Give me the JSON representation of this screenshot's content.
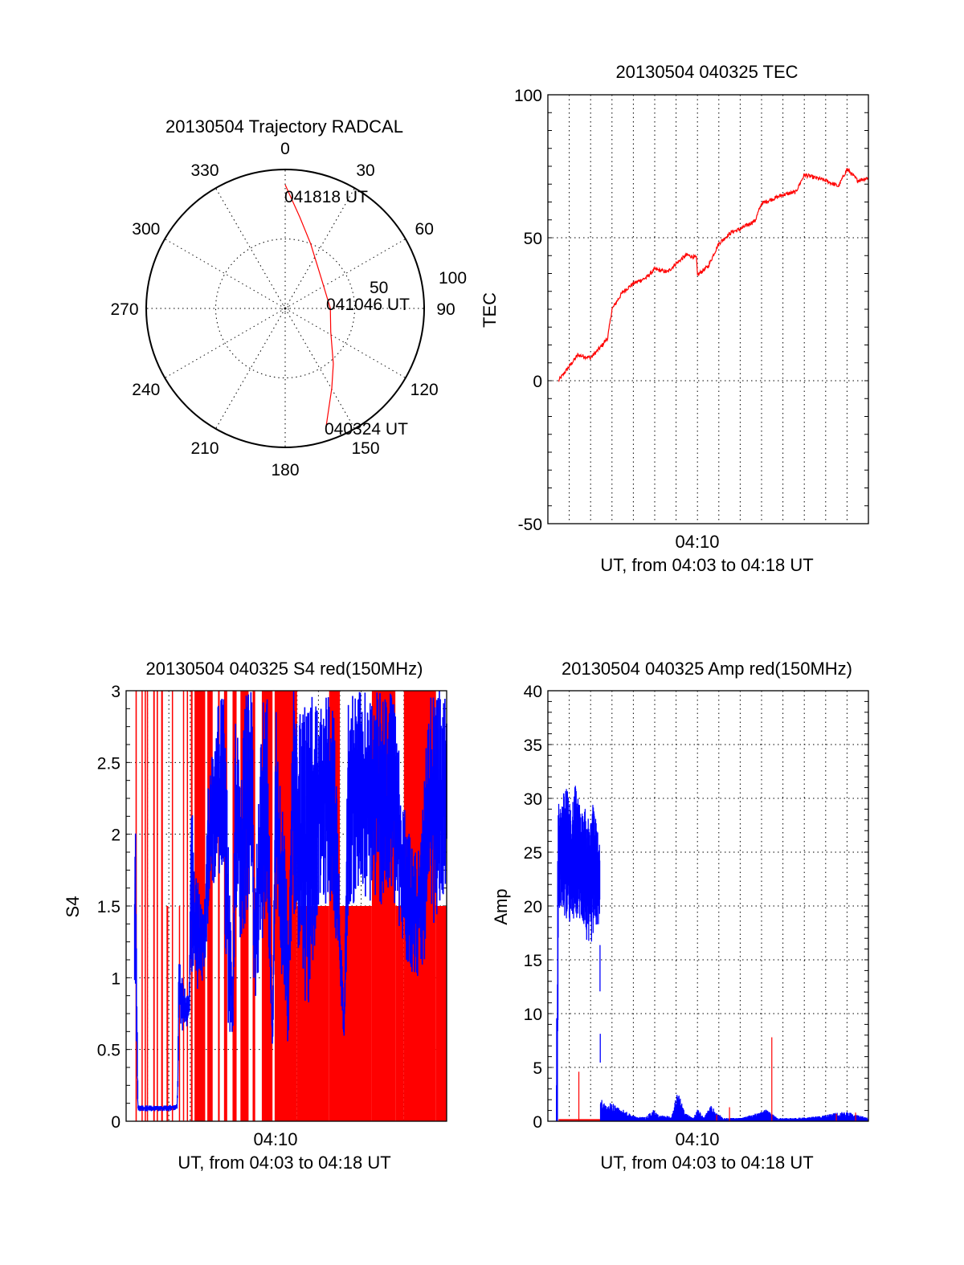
{
  "chart_data": [
    {
      "type": "polar",
      "title": "20130504 Trajectory RADCAL",
      "azimuth_labels": [
        "0",
        "30",
        "60",
        "90",
        "120",
        "150",
        "180",
        "210",
        "240",
        "270",
        "300",
        "330"
      ],
      "radial_labels": [
        "50",
        "100"
      ],
      "rlim": [
        0,
        100
      ],
      "trajectory_color": "#ff0000",
      "trajectory": [
        [
          160.7,
          89.4
        ],
        [
          149.6,
          66.3
        ],
        [
          139,
          52.8
        ],
        [
          117.3,
          36.9
        ],
        [
          90,
          32.5
        ],
        [
          50.3,
          33.8
        ],
        [
          21.4,
          50.1
        ],
        [
          9,
          66.7
        ],
        [
          0,
          89
        ]
      ],
      "annotations": {
        "start": "040324 UT",
        "mid": "041046 UT",
        "end": "041818 UT"
      }
    },
    {
      "type": "line",
      "title": "20130504 040325 TEC",
      "ylabel": "TEC",
      "xlabel": "UT, from 04:03 to 04:18 UT",
      "xtick_label": "04:10",
      "xlim_minutes_after_0403": [
        0,
        15
      ],
      "ylim": [
        -50,
        100
      ],
      "yticks": [
        "100",
        "50",
        "0",
        "-50"
      ],
      "color": "#ff0000",
      "x": [
        0.5,
        1,
        1.4,
        2,
        2.5,
        2.8,
        3,
        3.5,
        4,
        4.6,
        5,
        5.6,
        6,
        6.5,
        6.95,
        7,
        7.5,
        8,
        8.6,
        9,
        9.7,
        10,
        11,
        11.6,
        12,
        13,
        13.6,
        14,
        14.5,
        15
      ],
      "y": [
        0,
        5,
        9,
        8,
        12,
        15,
        25,
        31,
        34,
        36,
        39,
        38,
        41,
        44,
        43,
        37,
        40,
        48,
        52,
        53,
        56,
        62,
        65,
        66,
        72,
        70,
        68,
        74,
        70,
        71
      ]
    },
    {
      "type": "line",
      "title": "20130504 040325 S4 red(150MHz)",
      "ylabel": "S4",
      "xlabel": "UT, from 04:03 to 04:18 UT",
      "xtick_label": "04:10",
      "xlim_minutes_after_0403": [
        0,
        15
      ],
      "ylim": [
        0,
        3
      ],
      "yticks": [
        "3",
        "2.5",
        "2",
        "1.5",
        "1",
        "0.5",
        "0"
      ],
      "colors": {
        "red": "#ff0000",
        "blue": "#0000ff"
      },
      "red_segments_t0_t1_top": [
        [
          0.44,
          0.5,
          3
        ],
        [
          0.72,
          0.77,
          3
        ],
        [
          0.87,
          0.91,
          3
        ],
        [
          0.97,
          1.0,
          3
        ],
        [
          1.27,
          1.34,
          3
        ],
        [
          1.43,
          1.49,
          3
        ],
        [
          1.64,
          1.72,
          3
        ],
        [
          1.89,
          1.97,
          1.5
        ],
        [
          2.14,
          2.19,
          3
        ],
        [
          2.47,
          2.51,
          1.5
        ],
        [
          2.66,
          2.7,
          3
        ],
        [
          2.84,
          2.88,
          3
        ],
        [
          3.03,
          3.11,
          3
        ],
        [
          3.2,
          3.7,
          3
        ],
        [
          3.8,
          4.05,
          3
        ],
        [
          4.3,
          4.38,
          3
        ],
        [
          4.58,
          4.73,
          3
        ],
        [
          4.98,
          5.17,
          3
        ],
        [
          5.35,
          5.73,
          3
        ],
        [
          5.92,
          6.04,
          3
        ],
        [
          6.35,
          6.85,
          3
        ],
        [
          6.95,
          8.0,
          3
        ],
        [
          8.0,
          9.5,
          1.5
        ],
        [
          9.5,
          10.0,
          3
        ],
        [
          10.0,
          11.5,
          1.5
        ],
        [
          11.5,
          12.6,
          3
        ],
        [
          12.6,
          13.0,
          1.5
        ],
        [
          13.0,
          14.5,
          3
        ],
        [
          14.5,
          15,
          1.5
        ]
      ],
      "blue_envelope_t_lo_hi": [
        [
          0.4,
          0.6,
          1.9
        ],
        [
          0.45,
          0.8,
          2.3
        ],
        [
          0.5,
          0.25,
          1.0
        ],
        [
          0.55,
          0.07,
          0.11
        ],
        [
          1.0,
          0.07,
          0.11
        ],
        [
          1.5,
          0.07,
          0.11
        ],
        [
          2.0,
          0.07,
          0.11
        ],
        [
          2.38,
          0.08,
          0.13
        ],
        [
          2.42,
          0.2,
          0.3
        ],
        [
          2.47,
          0.7,
          1.15
        ],
        [
          2.7,
          0.6,
          0.95
        ],
        [
          2.95,
          0.7,
          0.85
        ],
        [
          3.05,
          1.0,
          2.5
        ],
        [
          3.2,
          0.95,
          1.8
        ],
        [
          3.45,
          0.9,
          1.6
        ],
        [
          3.65,
          1.0,
          1.4
        ],
        [
          3.85,
          1.4,
          2.5
        ],
        [
          4.0,
          1.6,
          2.6
        ],
        [
          4.3,
          1.7,
          3
        ],
        [
          4.55,
          1.6,
          3
        ],
        [
          4.8,
          0.6,
          2.0
        ],
        [
          5.0,
          0.6,
          0.8
        ],
        [
          5.1,
          1.5,
          3
        ],
        [
          5.4,
          1.2,
          2.5
        ],
        [
          5.6,
          1.4,
          3
        ],
        [
          5.9,
          1.7,
          3
        ],
        [
          6.0,
          0.8,
          1.5
        ],
        [
          6.2,
          1.0,
          2.4
        ],
        [
          6.4,
          1.2,
          3
        ],
        [
          6.6,
          1.5,
          3
        ],
        [
          6.85,
          0.5,
          0.6
        ],
        [
          7.0,
          1.5,
          3
        ],
        [
          7.6,
          0.45,
          1.5
        ],
        [
          7.8,
          1.5,
          3
        ],
        [
          8.5,
          0.7,
          3
        ],
        [
          9.0,
          1.5,
          3
        ],
        [
          9.7,
          1.5,
          3
        ],
        [
          10.2,
          0.55,
          0.7
        ],
        [
          10.4,
          1.5,
          3
        ],
        [
          11.5,
          1.5,
          3
        ],
        [
          12.5,
          1.5,
          3
        ],
        [
          13.0,
          1.1,
          2.2
        ],
        [
          13.5,
          1.0,
          1.9
        ],
        [
          13.8,
          1.0,
          2.0
        ],
        [
          14.2,
          1.3,
          3
        ],
        [
          14.7,
          1.5,
          3
        ],
        [
          15,
          1.5,
          3
        ]
      ]
    },
    {
      "type": "line",
      "title": "20130504 040325 Amp red(150MHz)",
      "ylabel": "Amp",
      "xlabel": "UT, from 04:03 to 04:18 UT",
      "xtick_label": "04:10",
      "xlim_minutes_after_0403": [
        0,
        15
      ],
      "ylim": [
        0,
        40
      ],
      "yticks": [
        "40",
        "35",
        "30",
        "25",
        "20",
        "15",
        "10",
        "5",
        "0"
      ],
      "colors": {
        "red": "#ff0000",
        "blue": "#0000ff"
      },
      "blue_envelope_t_lo_hi": [
        [
          0.4,
          0,
          5.3
        ],
        [
          0.45,
          0,
          26
        ],
        [
          0.5,
          20,
          30
        ],
        [
          0.7,
          19,
          30.5
        ],
        [
          0.9,
          18.5,
          31
        ],
        [
          1.1,
          18,
          29
        ],
        [
          1.3,
          19,
          31.5
        ],
        [
          1.5,
          18.5,
          29.5
        ],
        [
          1.7,
          18,
          30
        ],
        [
          1.9,
          15.5,
          28
        ],
        [
          2.1,
          17,
          30
        ],
        [
          2.3,
          18,
          27.5
        ],
        [
          2.43,
          18,
          26
        ],
        [
          2.46,
          0,
          2.3
        ],
        [
          2.7,
          0,
          1.5
        ],
        [
          3.0,
          0,
          1.8
        ],
        [
          3.3,
          0,
          1.3
        ],
        [
          3.6,
          0,
          1.0
        ],
        [
          3.9,
          0,
          0.6
        ],
        [
          4.2,
          0,
          0.4
        ],
        [
          4.6,
          0,
          0.4
        ],
        [
          4.9,
          0,
          1.1
        ],
        [
          5.2,
          0,
          0.6
        ],
        [
          5.6,
          0,
          0.5
        ],
        [
          5.8,
          0,
          0.5
        ],
        [
          6.0,
          0,
          2.5
        ],
        [
          6.15,
          0,
          2.4
        ],
        [
          6.4,
          0,
          0.8
        ],
        [
          6.8,
          0,
          0.3
        ],
        [
          7.0,
          0,
          1.3
        ],
        [
          7.3,
          0,
          0.3
        ],
        [
          7.6,
          0,
          1.5
        ],
        [
          7.8,
          0,
          1.1
        ],
        [
          8.2,
          0,
          0.3
        ],
        [
          9.0,
          0,
          0.3
        ],
        [
          10.0,
          0,
          0.9
        ],
        [
          10.2,
          0,
          1.2
        ],
        [
          10.4,
          0,
          0.8
        ],
        [
          10.8,
          0,
          0.3
        ],
        [
          11.5,
          0,
          0.3
        ],
        [
          12.3,
          0,
          0.4
        ],
        [
          13.0,
          0,
          0.6
        ],
        [
          13.5,
          0,
          0.8
        ],
        [
          14.0,
          0,
          0.9
        ],
        [
          14.5,
          0,
          0.6
        ],
        [
          15,
          0,
          0.3
        ]
      ],
      "red_baseline_t0_t1_value": [
        0.5,
        2.45,
        0.12
      ],
      "red_spikes_t_value": [
        [
          1.45,
          4.6
        ],
        [
          7.9,
          0.6
        ],
        [
          8.5,
          1.3
        ],
        [
          10.48,
          7.8
        ],
        [
          13.5,
          0.7
        ],
        [
          14.4,
          0.8
        ]
      ]
    }
  ]
}
